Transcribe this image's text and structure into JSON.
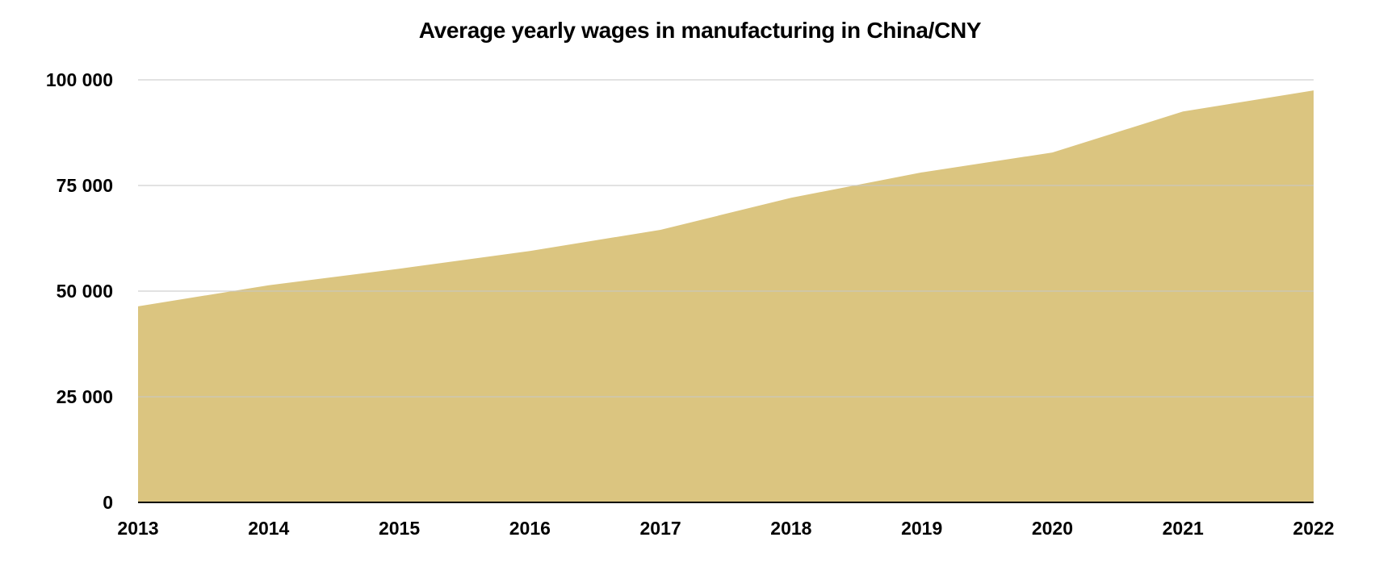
{
  "chart_data": {
    "type": "area",
    "title": "Average yearly wages in manufacturing in China/CNY",
    "xlabel": "",
    "ylabel": "",
    "categories": [
      "2013",
      "2014",
      "2015",
      "2016",
      "2017",
      "2018",
      "2019",
      "2020",
      "2021",
      "2022"
    ],
    "series": [
      {
        "values": [
          46400,
          51400,
          55300,
          59500,
          64500,
          72100,
          78100,
          82800,
          92500,
          97500
        ]
      }
    ],
    "ylim": [
      0,
      100000
    ],
    "yticks": [
      0,
      25000,
      50000,
      75000,
      100000
    ],
    "ytick_labels": [
      "0",
      "25 000",
      "50 000",
      "75 000",
      "100 000"
    ],
    "grid": true,
    "legend": "none",
    "colors": {
      "area": "#dbc580",
      "grid": "#c8c8c8",
      "axis": "#000000"
    }
  }
}
